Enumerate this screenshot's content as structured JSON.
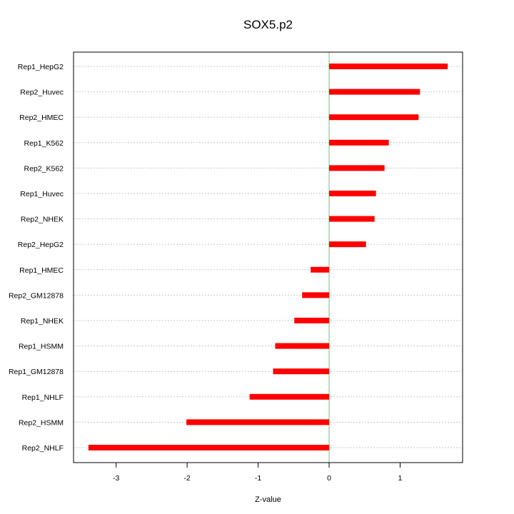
{
  "chart_data": {
    "type": "bar",
    "orientation": "horizontal",
    "title": "SOX5.p2",
    "xlabel": "Z-value",
    "ylabel": "",
    "xlim": [
      -3.6,
      1.88
    ],
    "xticks": [
      -3,
      -2,
      -1,
      0,
      1
    ],
    "xtick_labels": [
      "-3",
      "-2",
      "-1",
      "0",
      "1"
    ],
    "reference_line": 0,
    "grid": "horizontal dotted",
    "bar_color": "#ff0000",
    "reference_color": "#66cc66",
    "categories": [
      "Rep1_HepG2",
      "Rep2_Huvec",
      "Rep2_HMEC",
      "Rep1_K562",
      "Rep2_K562",
      "Rep1_Huvec",
      "Rep2_NHEK",
      "Rep2_HepG2",
      "Rep1_HMEC",
      "Rep2_GM12878",
      "Rep1_NHEK",
      "Rep1_HSMM",
      "Rep1_GM12878",
      "Rep1_NHLF",
      "Rep2_HSMM",
      "Rep2_NHLF"
    ],
    "values": [
      1.67,
      1.28,
      1.26,
      0.84,
      0.78,
      0.66,
      0.64,
      0.52,
      -0.26,
      -0.38,
      -0.49,
      -0.76,
      -0.79,
      -1.12,
      -2.01,
      -3.39
    ]
  }
}
